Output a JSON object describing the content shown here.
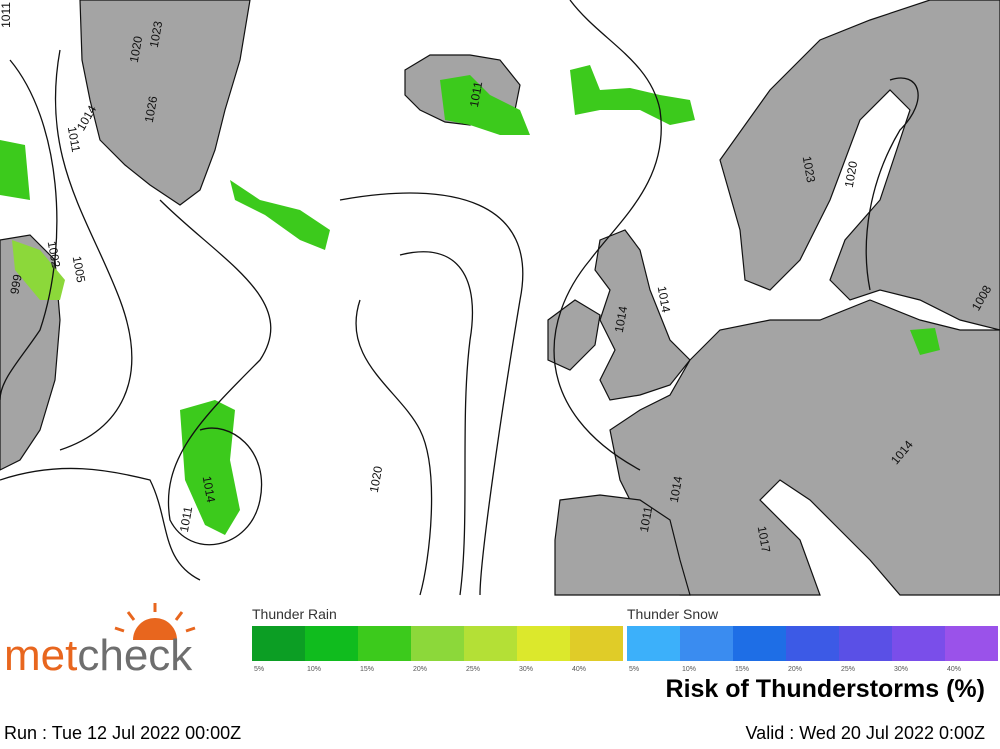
{
  "map": {
    "isobar_labels": [
      1011,
      1020,
      1023,
      1026,
      1014,
      1011,
      1005,
      1002,
      999,
      1011,
      1014,
      1020,
      1011,
      1023,
      1020,
      1014,
      1008,
      1014,
      1014,
      1014,
      1011,
      1017
    ]
  },
  "legend": {
    "rain": {
      "title": "Thunder Rain",
      "steps": [
        {
          "label": "5%",
          "color": "#0c9e24"
        },
        {
          "label": "10%",
          "color": "#10bc1e"
        },
        {
          "label": "15%",
          "color": "#3cca1c"
        },
        {
          "label": "20%",
          "color": "#8cd83a"
        },
        {
          "label": "25%",
          "color": "#b4e036"
        },
        {
          "label": "30%",
          "color": "#dce82c"
        },
        {
          "label": "40%",
          "color": "#e0cc28"
        }
      ]
    },
    "snow": {
      "title": "Thunder Snow",
      "steps": [
        {
          "label": "5%",
          "color": "#3cb0fa"
        },
        {
          "label": "10%",
          "color": "#3a8cf0"
        },
        {
          "label": "15%",
          "color": "#1e6ee6"
        },
        {
          "label": "20%",
          "color": "#3c5ae6"
        },
        {
          "label": "25%",
          "color": "#5a50e6"
        },
        {
          "label": "30%",
          "color": "#7a4eea"
        },
        {
          "label": "40%",
          "color": "#9a52ea"
        }
      ]
    }
  },
  "title": "Risk of Thunderstorms (%)",
  "logo": {
    "met": "met",
    "check": "check"
  },
  "footer": {
    "run": "Run : Tue 12 Jul 2022 00:00Z",
    "valid": "Valid : Wed 20 Jul 2022 0:00Z"
  }
}
